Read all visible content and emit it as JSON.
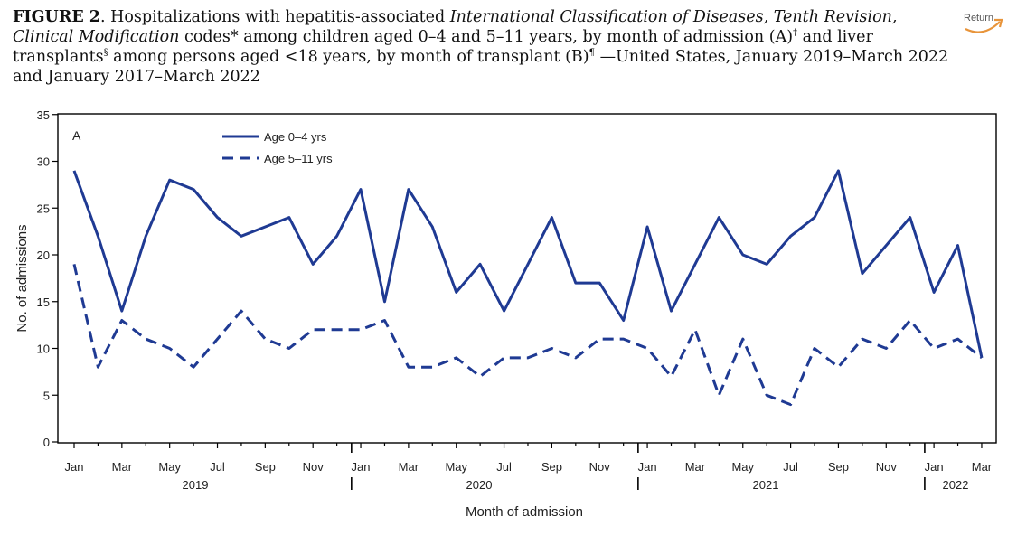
{
  "figure": {
    "label": "FIGURE 2",
    "caption_parts": [
      ". Hospitalizations with hepatitis-associated ",
      "International Classification of Diseases, Tenth Revision, Clinical Modification",
      " codes* among children aged 0–4 and 5–11 years, by month of admission (A)",
      "†",
      " and liver transplants",
      "§",
      " among persons aged <18 years, by month of transplant (B)",
      "¶",
      " —United States, January 2019–March 2022 and January 2017–March 2022"
    ],
    "return_label": "Return",
    "return_color": "#e8943a"
  },
  "chart_data": {
    "type": "line",
    "panel_label": "A",
    "xlabel": "Month of admission",
    "ylabel": "No. of admissions",
    "ylim": [
      0,
      35
    ],
    "yticks": [
      0,
      5,
      10,
      15,
      20,
      25,
      30,
      35
    ],
    "grid": false,
    "legend_position": "top-left",
    "x_tick_labels": [
      "Jan",
      "Mar",
      "May",
      "Jul",
      "Sep",
      "Nov",
      "Jan",
      "Mar",
      "May",
      "Jul",
      "Sep",
      "Nov",
      "Jan",
      "Mar",
      "May",
      "Jul",
      "Sep",
      "Nov",
      "Jan",
      "Mar"
    ],
    "year_labels": [
      "2019",
      "2020",
      "2021",
      "2022"
    ],
    "x": [
      "2019-01",
      "2019-02",
      "2019-03",
      "2019-04",
      "2019-05",
      "2019-06",
      "2019-07",
      "2019-08",
      "2019-09",
      "2019-10",
      "2019-11",
      "2019-12",
      "2020-01",
      "2020-02",
      "2020-03",
      "2020-04",
      "2020-05",
      "2020-06",
      "2020-07",
      "2020-08",
      "2020-09",
      "2020-10",
      "2020-11",
      "2020-12",
      "2021-01",
      "2021-02",
      "2021-03",
      "2021-04",
      "2021-05",
      "2021-06",
      "2021-07",
      "2021-08",
      "2021-09",
      "2021-10",
      "2021-11",
      "2021-12",
      "2022-01",
      "2022-02",
      "2022-03"
    ],
    "series": [
      {
        "name": "Age 0–4 yrs",
        "style": "solid",
        "color": "#1f3a93",
        "values": [
          29,
          22,
          14,
          22,
          28,
          27,
          24,
          22,
          23,
          24,
          19,
          22,
          27,
          15,
          27,
          23,
          16,
          19,
          14,
          19,
          24,
          17,
          17,
          13,
          23,
          14,
          19,
          24,
          20,
          19,
          22,
          24,
          29,
          18,
          21,
          24,
          16,
          21,
          9
        ]
      },
      {
        "name": "Age 5–11 yrs",
        "style": "dashed",
        "color": "#1f3a93",
        "values": [
          19,
          8,
          13,
          11,
          10,
          8,
          11,
          14,
          11,
          10,
          12,
          12,
          12,
          13,
          8,
          8,
          9,
          7,
          9,
          9,
          10,
          9,
          11,
          11,
          10,
          7,
          12,
          5,
          11,
          5,
          4,
          10,
          8,
          11,
          10,
          13,
          10,
          11,
          9
        ]
      }
    ]
  }
}
